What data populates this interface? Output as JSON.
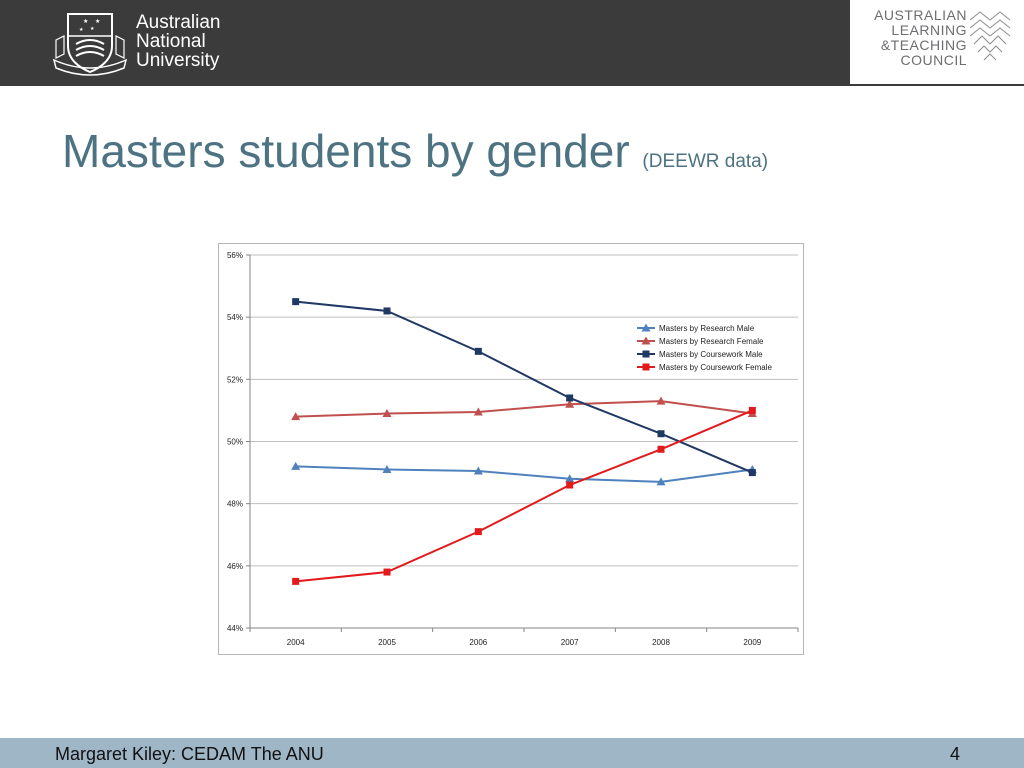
{
  "header": {
    "anu_name_lines": [
      "Australian",
      "National",
      "University"
    ],
    "altc_lines": [
      "AUSTRALIAN",
      "LEARNING",
      "&TEACHING",
      "COUNCIL"
    ],
    "background_color": "#3b3b3b"
  },
  "slide": {
    "title": "Masters students by gender",
    "subtitle": "(DEEWR data)",
    "title_color": "#4d7383"
  },
  "chart_data": {
    "type": "line",
    "title": "",
    "xlabel": "",
    "ylabel": "",
    "categories": [
      "2004",
      "2005",
      "2006",
      "2007",
      "2008",
      "2009"
    ],
    "ylim": [
      44,
      56
    ],
    "yticks": [
      44,
      46,
      48,
      50,
      52,
      54,
      56
    ],
    "ytick_labels": [
      "44%",
      "46%",
      "48%",
      "50%",
      "52%",
      "54%",
      "56%"
    ],
    "grid": true,
    "legend_position": "top-right",
    "series": [
      {
        "name": "Masters by Research Male",
        "color": "#4f81bd",
        "marker": "triangle",
        "values": [
          49.2,
          49.1,
          49.05,
          48.8,
          48.7,
          49.1
        ]
      },
      {
        "name": "Masters by Research Female",
        "color": "#c0504d",
        "marker": "triangle",
        "values": [
          50.8,
          50.9,
          50.95,
          51.2,
          51.3,
          50.9
        ]
      },
      {
        "name": "Masters by Coursework Male",
        "color": "#1f3864",
        "marker": "square",
        "values": [
          54.5,
          54.2,
          52.9,
          51.4,
          50.25,
          49.0
        ]
      },
      {
        "name": "Masters by Coursework Female",
        "color": "#e31a1c",
        "marker": "square",
        "values": [
          45.5,
          45.8,
          47.1,
          48.6,
          49.75,
          51.0
        ]
      }
    ]
  },
  "footer": {
    "author": "Margaret Kiley: CEDAM The ANU",
    "page_number": "4",
    "background_color": "#9fb6c6"
  }
}
